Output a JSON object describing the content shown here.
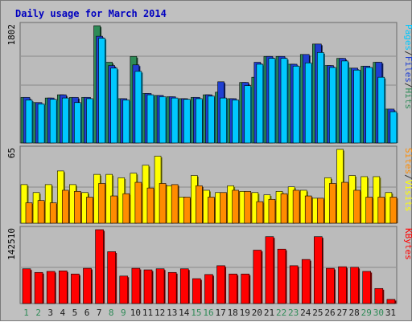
{
  "colors": {
    "background": "#c0c0c0",
    "plot_bg": "#bbbbbb",
    "title": "#0000c0",
    "hits": "#2e8b57",
    "files": "#1f3fd1",
    "pages": "#00c8ff",
    "visits": "#ffff00",
    "sites": "#ff8c00",
    "kbytes": "#ff0000",
    "weekday_label": "#1a1a1a",
    "weekend_label": "#2e8b57"
  },
  "chart_data": {
    "title": "Daily usage for March 2014",
    "categories": [
      "1",
      "2",
      "3",
      "4",
      "5",
      "6",
      "7",
      "8",
      "9",
      "10",
      "11",
      "12",
      "13",
      "14",
      "15",
      "16",
      "17",
      "18",
      "19",
      "20",
      "21",
      "22",
      "23",
      "24",
      "25",
      "26",
      "27",
      "28",
      "29",
      "30",
      "31"
    ],
    "weekend_days": [
      "1",
      "2",
      "8",
      "9",
      "15",
      "16",
      "22",
      "23",
      "29",
      "30"
    ],
    "panels": [
      {
        "type": "bar",
        "max_label": "1802",
        "ylim": [
          0,
          1802
        ],
        "legend": [
          "Pages",
          "/",
          "Files",
          "/",
          "Hits"
        ],
        "series": [
          {
            "name": "Hits",
            "values": [
              700,
              620,
              690,
              740,
              700,
              700,
              1802,
              1240,
              680,
              1330,
              760,
              730,
              710,
              680,
              700,
              740,
              780,
              680,
              930,
              1010,
              1330,
              1330,
              1210,
              1360,
              1520,
              1190,
              1300,
              1150,
              1180,
              1240,
              520
            ]
          },
          {
            "name": "Files",
            "values": [
              700,
              620,
              690,
              740,
              700,
              700,
              1640,
              1190,
              680,
              1200,
              760,
              730,
              710,
              680,
              700,
              740,
              940,
              680,
              930,
              1240,
              1330,
              1330,
              1210,
              1360,
              1520,
              1190,
              1300,
              1150,
              1180,
              1240,
              520
            ]
          },
          {
            "name": "Pages",
            "values": [
              660,
              600,
              670,
              690,
              620,
              680,
              1610,
              1150,
              660,
              1100,
              740,
              710,
              690,
              670,
              680,
              720,
              690,
              660,
              880,
              1210,
              1300,
              1300,
              1180,
              1230,
              1390,
              1160,
              1260,
              1120,
              1160,
              1010,
              480
            ]
          }
        ]
      },
      {
        "type": "bar",
        "max_label": "65",
        "ylim": [
          0,
          65
        ],
        "legend": [
          "Sites",
          "/",
          "Visits"
        ],
        "series": [
          {
            "name": "Visits",
            "values": [
              34,
              27,
              34,
              46,
              34,
              27,
              43,
              43,
              40,
              44,
              51,
              59,
              33,
              23,
              42,
              29,
              27,
              33,
              28,
              27,
              25,
              28,
              32,
              29,
              22,
              40,
              65,
              42,
              41,
              41,
              27
            ]
          },
          {
            "name": "Sites",
            "values": [
              18,
              20,
              18,
              29,
              28,
              23,
              35,
              24,
              26,
              36,
              31,
              35,
              34,
              23,
              33,
              23,
              27,
              29,
              28,
              19,
              21,
              26,
              29,
              24,
              22,
              35,
              36,
              29,
              23,
              23,
              23
            ]
          }
        ]
      },
      {
        "type": "bar",
        "max_label": "142510",
        "ylim": [
          0,
          142510
        ],
        "legend": [
          "KBytes"
        ],
        "series": [
          {
            "name": "KBytes",
            "values": [
              67000,
              60000,
              62000,
              63000,
              57000,
              68000,
              142510,
              100000,
              53000,
              68000,
              65000,
              67000,
              60000,
              67000,
              48000,
              56000,
              73000,
              57000,
              57000,
              103000,
              129000,
              105000,
              73000,
              85000,
              129000,
              68000,
              71000,
              70000,
              62000,
              29000,
              8000
            ]
          }
        ]
      }
    ]
  }
}
